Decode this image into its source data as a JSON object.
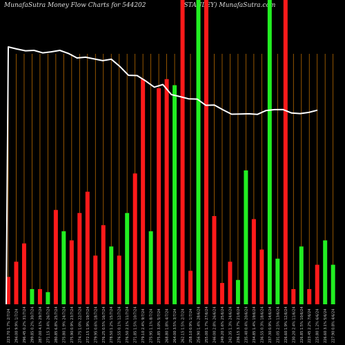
{
  "header": {
    "left": "MunafaSutra  Money Flow  Charts for 544202",
    "right": "(STANLEY)  MunafaSutra.com"
  },
  "colors": {
    "background": "#000000",
    "up": "#22ee22",
    "down": "#ff1a1a",
    "grid": "#b86a00",
    "line": "#ffffff",
    "label": "#cccccc"
  },
  "chart_data": {
    "type": "bar",
    "title": "",
    "xlabel": "",
    "ylabel": "",
    "grid": true,
    "categories": [
      "223.70  1.7% 2/7/24",
      "294.00  9.9% 1/7/24",
      "296.45  0.2% 31/7/24",
      "299.85  0.2% 30/7/24",
      "287.00  4.1% 29/7/24",
      "271.15  3.4% 26/7/24",
      "280.85  6.8% 25/7/24",
      "275.80  1.9% 24/7/24",
      "275.90  0.9% 23/7/24",
      "274.75  1.0% 22/7/24",
      "272.15  1.9% 19/7/24",
      "279.95  0.6% 18/7/24",
      "276.25  0.5% 16/7/24",
      "278.50  1.2% 15/7/24",
      "276.55  0.1% 12/7/24",
      "276.50  2.1% 11/7/24",
      "271.85  1.5% 10/7/24",
      "279.10  2.4% 9/7/24",
      "275.95  1.1% 8/7/24",
      "275.85  3.0% 5/7/24",
      "268.80  1.8% 4/7/24",
      "264.00  3.5% 3/7/24",
      "262.15  1.5% 2/7/24",
      "258.10  0.9% 1/7/24",
      "256.90  1.4% 28/6/24",
      "255.00  1.7% 27/6/24",
      "246.00  2.8% 26/6/24",
      "249.20  1.6% 25/6/24",
      "242.35  1.3% 24/6/24",
      "236.15  3.7% 21/6/24",
      "235.40  0.4% 20/6/24",
      "234.85  1.4% 19/6/24",
      "236.55  0.3% 18/6/24",
      "237.30  0.9% 14/6/24",
      "231.05  2.5% 13/6/24",
      "226.60  1.9% 12/6/24",
      "230.20  2.4% 11/6/24",
      "226.85  1.5% 10/6/24",
      "223.45  2.2% 7/6/24",
      "225.80  1.2% 6/6/24",
      "226.60  3.1% 5/6/24",
      "227.90  0.8% 4/6/24"
    ],
    "values": [
      9,
      14,
      20,
      5,
      5,
      4,
      31,
      24,
      21,
      30,
      37,
      16,
      26,
      19,
      16,
      30,
      43,
      74,
      24,
      71,
      74,
      72,
      100,
      11,
      100,
      100,
      29,
      7,
      14,
      8,
      44,
      28,
      18,
      100,
      15,
      100,
      5,
      19,
      5,
      13,
      21,
      13
    ],
    "directions": [
      "down",
      "down",
      "down",
      "up",
      "down",
      "up",
      "down",
      "up",
      "down",
      "down",
      "down",
      "down",
      "down",
      "up",
      "down",
      "up",
      "down",
      "down",
      "up",
      "down",
      "down",
      "up",
      "down",
      "down",
      "up",
      "down",
      "down",
      "down",
      "down",
      "up",
      "up",
      "down",
      "down",
      "up",
      "up",
      "down",
      "down",
      "up",
      "down",
      "down",
      "up",
      "up"
    ],
    "ylim": [
      0,
      100
    ],
    "line": {
      "name": "",
      "values": [
        100,
        97.6,
        95.6,
        96.1,
        93.2,
        94.4,
        96.1,
        92.6,
        87.4,
        88.3,
        86.3,
        84.3,
        86.0,
        77.6,
        67.6,
        67.3,
        61.2,
        54.1,
        57.1,
        45.6,
        43.3,
        40.8,
        40.5,
        33.4,
        33.7,
        28.3,
        23.2,
        23.4,
        23.7,
        23.0,
        27.3,
        28.4,
        28.5,
        24.6,
        23.9,
        25.3,
        27.8
      ],
      "start_index": 0
    }
  }
}
